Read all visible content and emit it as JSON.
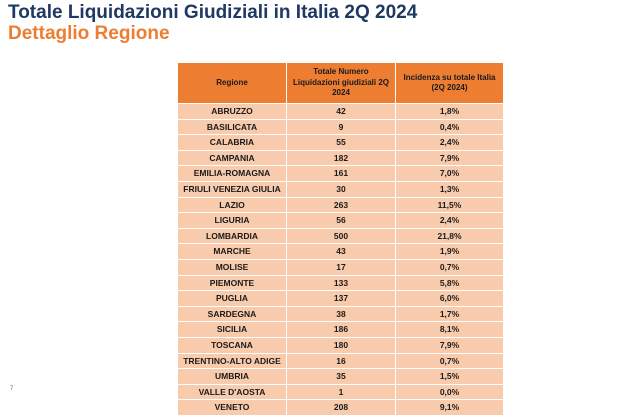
{
  "header": {
    "title": "Totale Liquidazioni Giudiziali in Italia 2Q 2024",
    "subtitle": "Dettaglio Regione"
  },
  "table": {
    "columns": [
      "Regione",
      "Totale Numero Liquidazioni giudiziali 2Q 2024",
      "Incidenza su totale Italia (2Q 2024)"
    ],
    "rows": [
      [
        "ABRUZZO",
        "42",
        "1,8%"
      ],
      [
        "BASILICATA",
        "9",
        "0,4%"
      ],
      [
        "CALABRIA",
        "55",
        "2,4%"
      ],
      [
        "CAMPANIA",
        "182",
        "7,9%"
      ],
      [
        "EMILIA-ROMAGNA",
        "161",
        "7,0%"
      ],
      [
        "FRIULI VENEZIA GIULIA",
        "30",
        "1,3%"
      ],
      [
        "LAZIO",
        "263",
        "11,5%"
      ],
      [
        "LIGURIA",
        "56",
        "2,4%"
      ],
      [
        "LOMBARDIA",
        "500",
        "21,8%"
      ],
      [
        "MARCHE",
        "43",
        "1,9%"
      ],
      [
        "MOLISE",
        "17",
        "0,7%"
      ],
      [
        "PIEMONTE",
        "133",
        "5,8%"
      ],
      [
        "PUGLIA",
        "137",
        "6,0%"
      ],
      [
        "SARDEGNA",
        "38",
        "1,7%"
      ],
      [
        "SICILIA",
        "186",
        "8,1%"
      ],
      [
        "TOSCANA",
        "180",
        "7,9%"
      ],
      [
        "TRENTINO-ALTO ADIGE",
        "16",
        "0,7%"
      ],
      [
        "UMBRIA",
        "35",
        "1,5%"
      ],
      [
        "VALLE D'AOSTA",
        "1",
        "0,0%"
      ],
      [
        "VENETO",
        "208",
        "9,1%"
      ]
    ]
  },
  "footer": {
    "page_number": "7"
  },
  "colors": {
    "title": "#1f3864",
    "subtitle": "#ed7d31",
    "header_fill": "#ed7d31",
    "row_fill": "#f8cbad"
  }
}
